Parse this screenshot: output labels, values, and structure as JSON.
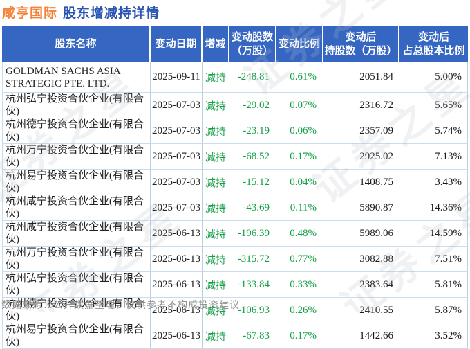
{
  "title": {
    "stock_name": "咸亨国际",
    "page_title": "股东增减持详情"
  },
  "colors": {
    "header_bg": "#3566c2",
    "title_stock": "#f2843c",
    "title_text": "#2b55b2",
    "decrease_green": "#14a046",
    "grid_vline": "#b9cfe2",
    "grid_hline": "#cbdceb"
  },
  "watermark": {
    "text": "证券之星"
  },
  "table": {
    "columns": [
      {
        "label": "股东名称"
      },
      {
        "label": "变动日期"
      },
      {
        "label": "增减"
      },
      {
        "label": "变动股数\n（万股）"
      },
      {
        "label": "变动比例"
      },
      {
        "label": "变动后\n持股数（万股）"
      },
      {
        "label": "变动后\n占总股本比例"
      }
    ],
    "rows": [
      {
        "name": "GOLDMAN SACHS ASIA STRATEGIC PTE. LTD.",
        "date": "2025-09-11",
        "action": "减持",
        "change_shares": "-248.81",
        "change_ratio": "0.61%",
        "shares_after": "2051.84",
        "pct_after": "5.00%"
      },
      {
        "name": "杭州弘宁投资合伙企业(有限合伙)",
        "date": "2025-07-03",
        "action": "减持",
        "change_shares": "-29.02",
        "change_ratio": "0.07%",
        "shares_after": "2316.72",
        "pct_after": "5.65%"
      },
      {
        "name": "杭州德宁投资合伙企业(有限合伙)",
        "date": "2025-07-03",
        "action": "减持",
        "change_shares": "-23.19",
        "change_ratio": "0.06%",
        "shares_after": "2357.09",
        "pct_after": "5.74%"
      },
      {
        "name": "杭州万宁投资合伙企业(有限合伙)",
        "date": "2025-07-03",
        "action": "减持",
        "change_shares": "-68.52",
        "change_ratio": "0.17%",
        "shares_after": "2925.02",
        "pct_after": "7.13%"
      },
      {
        "name": "杭州易宁投资合伙企业(有限合伙)",
        "date": "2025-07-03",
        "action": "减持",
        "change_shares": "-15.12",
        "change_ratio": "0.04%",
        "shares_after": "1408.75",
        "pct_after": "3.43%"
      },
      {
        "name": "杭州咸宁投资合伙企业(有限合伙)",
        "date": "2025-07-03",
        "action": "减持",
        "change_shares": "-43.69",
        "change_ratio": "0.11%",
        "shares_after": "5890.87",
        "pct_after": "14.36%"
      },
      {
        "name": "杭州咸宁投资合伙企业(有限合伙)",
        "date": "2025-06-13",
        "action": "减持",
        "change_shares": "-196.39",
        "change_ratio": "0.48%",
        "shares_after": "5989.06",
        "pct_after": "14.59%"
      },
      {
        "name": "杭州万宁投资合伙企业(有限合伙)",
        "date": "2025-06-13",
        "action": "减持",
        "change_shares": "-315.72",
        "change_ratio": "0.77%",
        "shares_after": "3082.88",
        "pct_after": "7.51%"
      },
      {
        "name": "杭州弘宁投资合伙企业(有限合伙)",
        "date": "2025-06-13",
        "action": "减持",
        "change_shares": "-133.84",
        "change_ratio": "0.33%",
        "shares_after": "2383.64",
        "pct_after": "5.81%"
      },
      {
        "name": "杭州德宁投资合伙企业(有限合伙)",
        "date": "2025-06-13",
        "action": "减持",
        "change_shares": "-106.93",
        "change_ratio": "0.26%",
        "shares_after": "2410.55",
        "pct_after": "5.87%"
      },
      {
        "name": "杭州易宁投资合伙企业(有限合伙)",
        "date": "2025-06-13",
        "action": "减持",
        "change_shares": "-67.83",
        "change_ratio": "0.17%",
        "shares_after": "1442.66",
        "pct_after": "3.52%"
      }
    ]
  },
  "footer": {
    "source_note": "数据来源：公开数据整理，仅供参考不构成投资建议"
  }
}
